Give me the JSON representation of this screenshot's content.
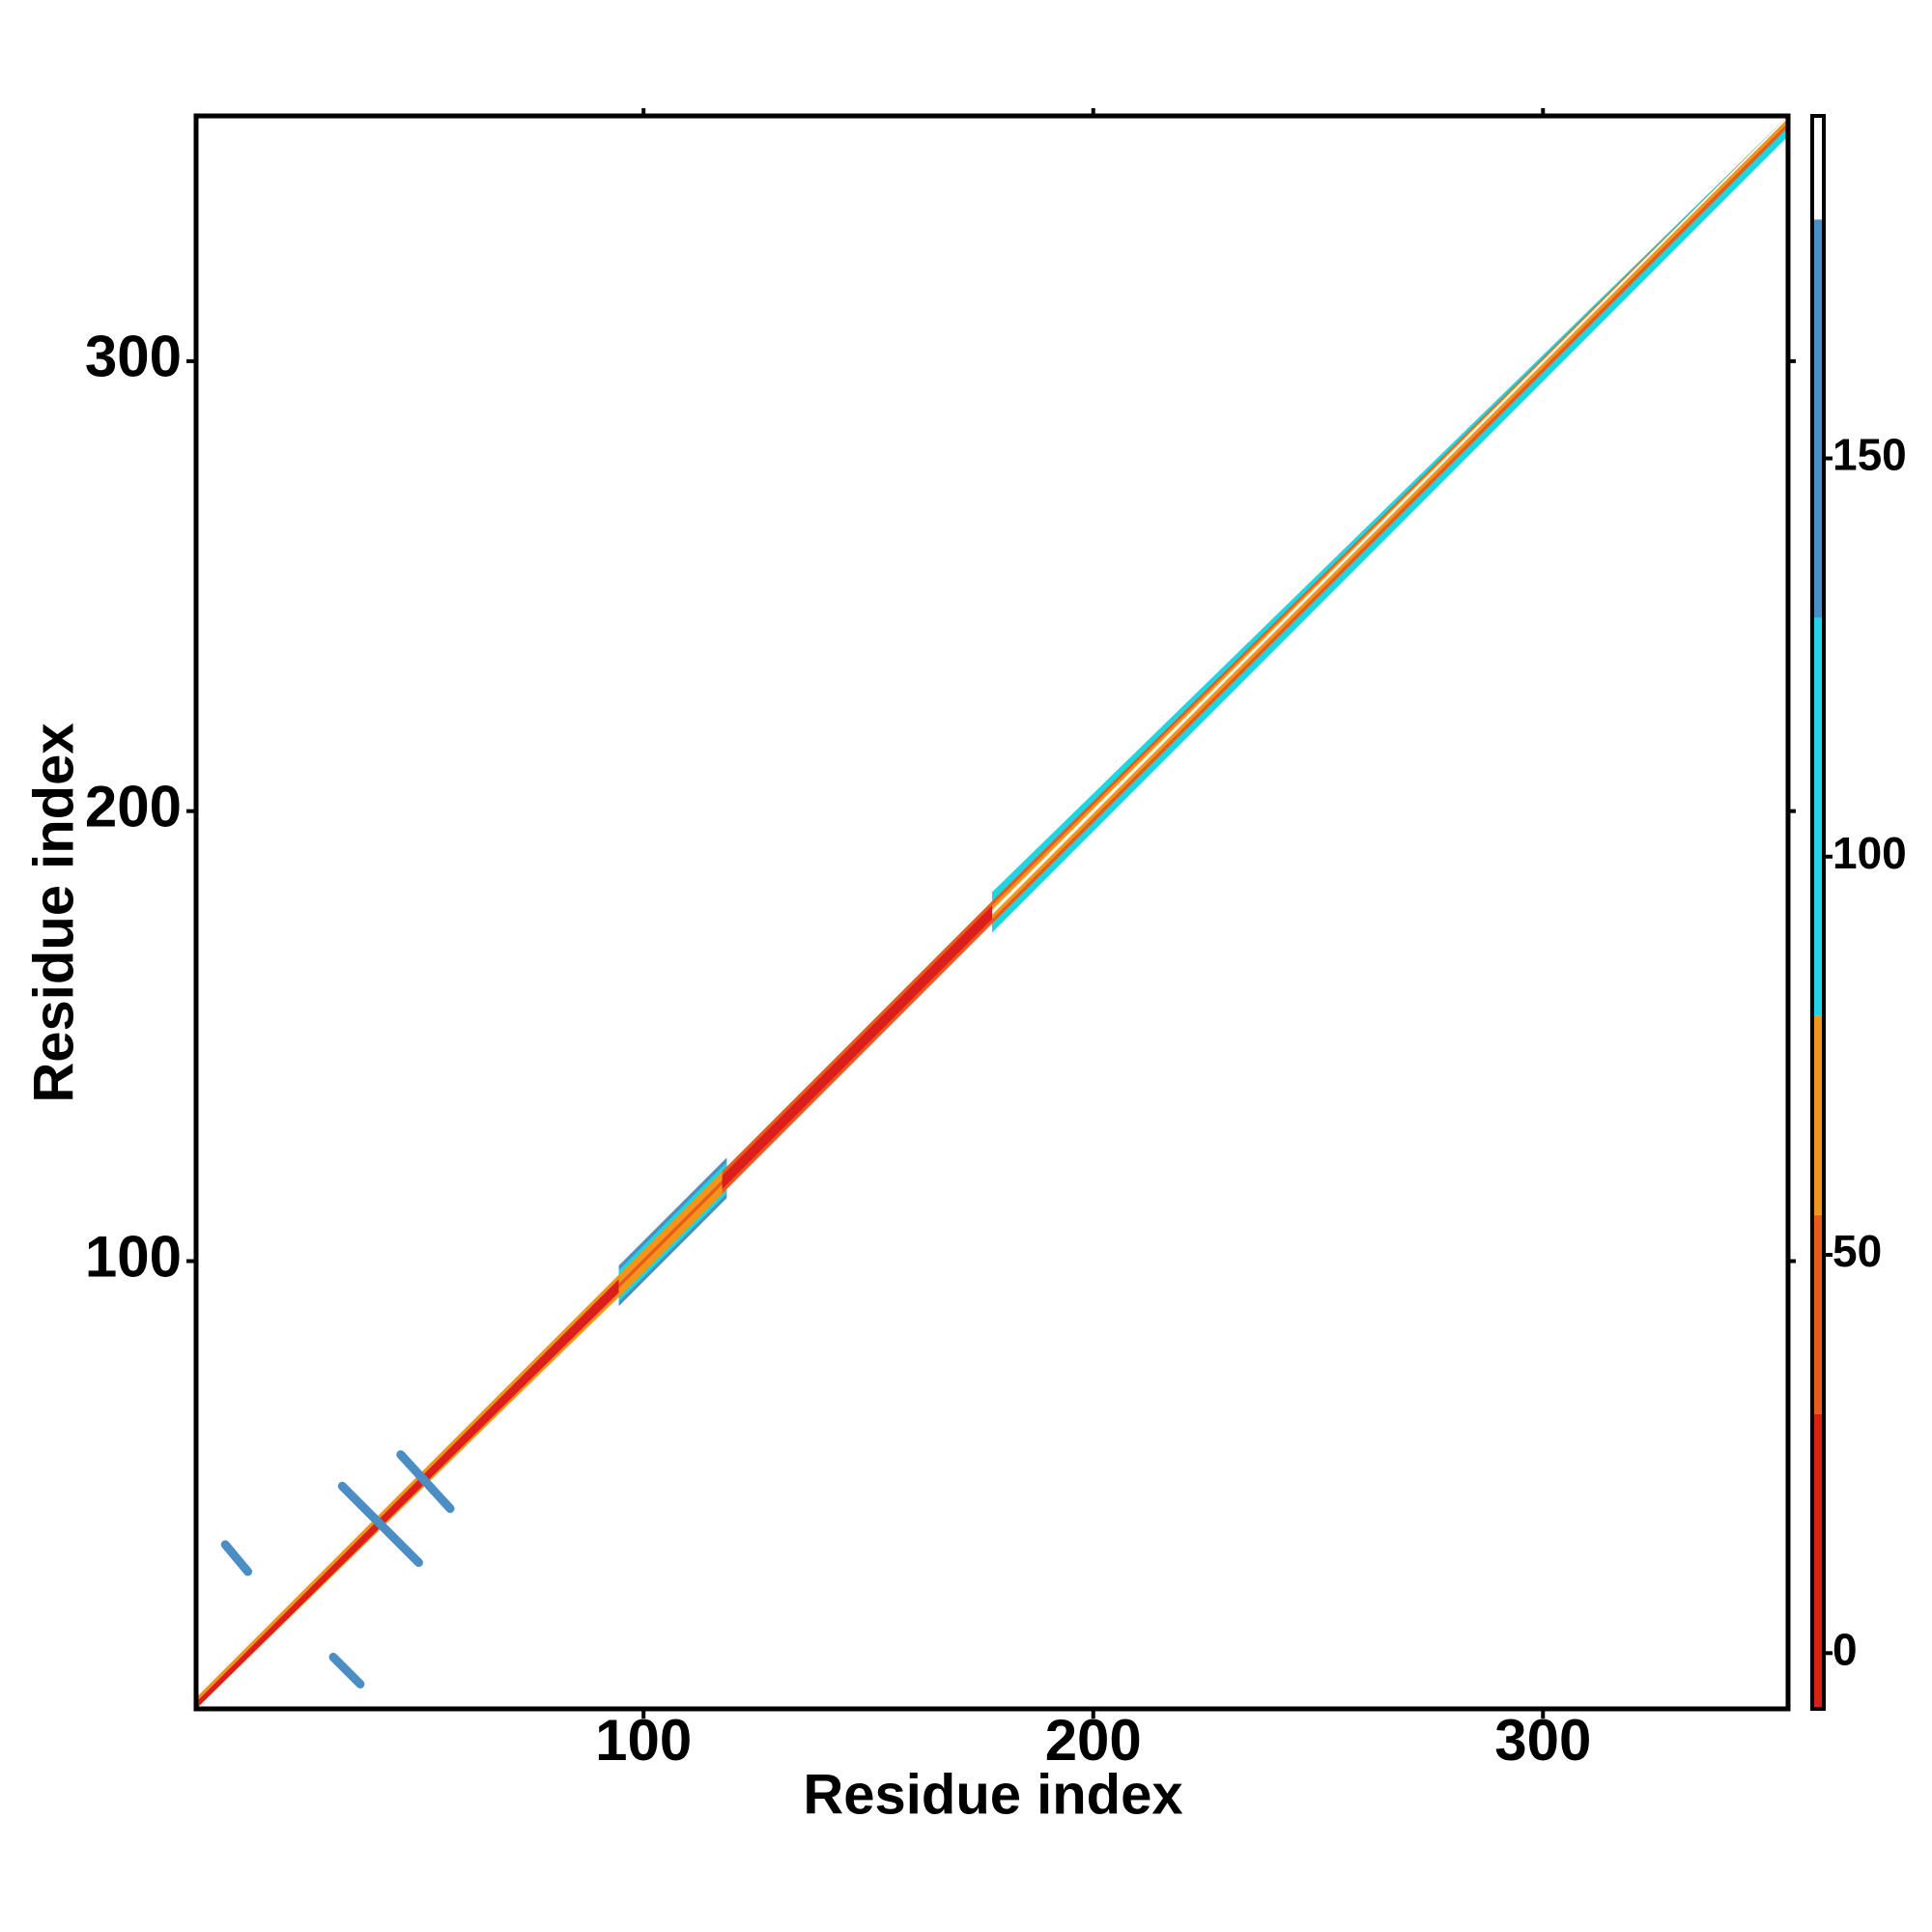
{
  "chart_data": {
    "type": "contact-map",
    "x_label": "Residue index",
    "y_label": "Residue index",
    "xlim": [
      0.5,
      354.5
    ],
    "ylim": [
      0.5,
      354.5
    ],
    "xticks": [
      100,
      200,
      300
    ],
    "yticks": [
      100,
      200,
      300
    ],
    "bands": [
      {
        "from": 1,
        "to": 95,
        "profile": [
          0,
          20,
          60
        ]
      },
      {
        "from": 95,
        "to": 118,
        "profile": [
          45,
          60,
          70,
          100,
          140
        ]
      },
      {
        "from": 118,
        "to": 178,
        "profile": [
          0,
          20,
          40
        ]
      },
      {
        "from": 178,
        "to": 354,
        "profile": [
          190,
          60,
          45,
          100,
          110
        ]
      }
    ],
    "contacts": [
      {
        "x": [
          33,
          50
        ],
        "y": [
          50,
          33
        ],
        "value": 150
      },
      {
        "x": [
          46,
          57
        ],
        "y": [
          57,
          45
        ],
        "value": 150
      },
      {
        "x": [
          7,
          12
        ],
        "y": [
          37,
          31
        ],
        "value": 140
      },
      {
        "x": [
          31,
          37
        ],
        "y": [
          12,
          6
        ],
        "value": 140
      }
    ],
    "color_scale": [
      {
        "from": -7,
        "to": 30,
        "color": "#dc1f1a"
      },
      {
        "from": 30,
        "to": 55,
        "color": "#ea5a1c"
      },
      {
        "from": 55,
        "to": 80,
        "color": "#f0961a"
      },
      {
        "from": 80,
        "to": 130,
        "color": "#1ed6e2"
      },
      {
        "from": 130,
        "to": 180,
        "color": "#4a8ec4"
      },
      {
        "from": 180,
        "to": 193,
        "color": "#ffffff"
      }
    ],
    "colorbar_lim": [
      -7,
      193
    ],
    "colorbar_ticks": [
      0,
      50,
      100,
      150
    ]
  }
}
